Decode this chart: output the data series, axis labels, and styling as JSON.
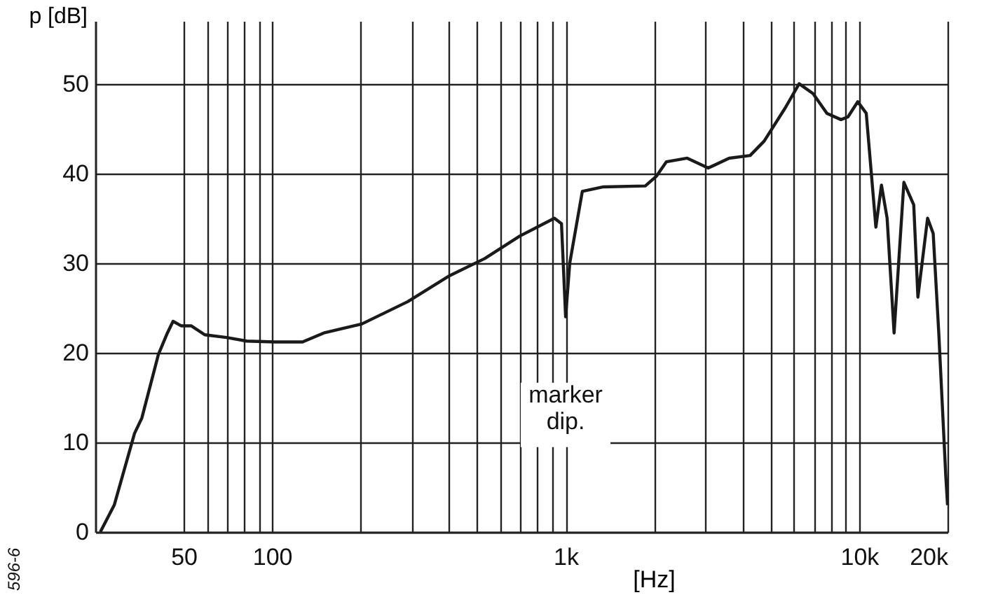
{
  "chart_data": {
    "type": "line",
    "xlabel": "[Hz]",
    "ylabel": "p [dB]",
    "x": [
      26,
      29,
      33,
      34,
      36,
      41,
      44,
      46,
      49,
      53,
      59,
      70,
      82,
      102,
      127,
      150,
      202,
      290,
      403,
      530,
      697,
      916,
      968,
      1000,
      1033,
      1140,
      1345,
      1868,
      2040,
      2205,
      2596,
      3060,
      3607,
      4252,
      4745,
      5597,
      6244,
      6966,
      7766,
      8668,
      9157,
      9890,
      10570,
      11400,
      11910,
      12450,
      13150,
      14200,
      15340,
      15850,
      17100,
      17870,
      18670,
      19720,
      20000
    ],
    "series": [
      {
        "color": "#1a1a1a",
        "values": [
          0,
          3,
          9.5,
          11,
          12.7,
          19.8,
          22.2,
          23.5,
          23,
          23,
          22,
          21.7,
          21.3,
          21.2,
          21.2,
          22.2,
          23.2,
          25.7,
          28.6,
          30.5,
          33,
          35,
          34.4,
          24,
          30,
          38,
          38.5,
          38.6,
          39.7,
          41.3,
          41.7,
          40.6,
          41.7,
          42,
          43.6,
          47.3,
          50,
          48.9,
          46.7,
          46,
          46.3,
          48,
          46.7,
          34,
          38.7,
          35,
          22.2,
          39,
          36.5,
          26.2,
          35,
          33.3,
          22.2,
          6.3,
          3
        ]
      }
    ],
    "log": "x",
    "xlim": [
      25,
      20000
    ],
    "xticks": [
      50,
      {
        "value": 60,
        "label": null
      },
      {
        "value": 70,
        "label": null
      },
      {
        "value": 80,
        "label": null
      },
      {
        "value": 90,
        "label": null
      },
      100,
      {
        "value": 200,
        "label": null
      },
      {
        "value": 300,
        "label": null
      },
      {
        "value": 400,
        "label": null
      },
      {
        "value": 500,
        "label": null
      },
      {
        "value": 600,
        "label": null
      },
      {
        "value": 700,
        "label": null
      },
      {
        "value": 800,
        "label": null
      },
      {
        "value": 900,
        "label": null
      },
      {
        "value": 1000,
        "label": "1k"
      },
      {
        "value": 2000,
        "label": null
      },
      {
        "value": 3000,
        "label": null
      },
      {
        "value": 4000,
        "label": null
      },
      {
        "value": 5000,
        "label": null
      },
      {
        "value": 6000,
        "label": null
      },
      {
        "value": 7000,
        "label": null
      },
      {
        "value": 8000,
        "label": null
      },
      {
        "value": 9000,
        "label": null
      },
      {
        "value": 10000,
        "label": "10k"
      },
      {
        "value": 20000,
        "label": "20k"
      }
    ],
    "ylim": [
      0,
      57
    ],
    "yticks": [
      0,
      10,
      20,
      30,
      40,
      50
    ],
    "grid": "xy",
    "marker": "none",
    "line_style": "solid",
    "annotations": [
      {
        "text": "marker\ndip.",
        "x": 1000,
        "y": 24
      },
      "596-6"
    ]
  }
}
